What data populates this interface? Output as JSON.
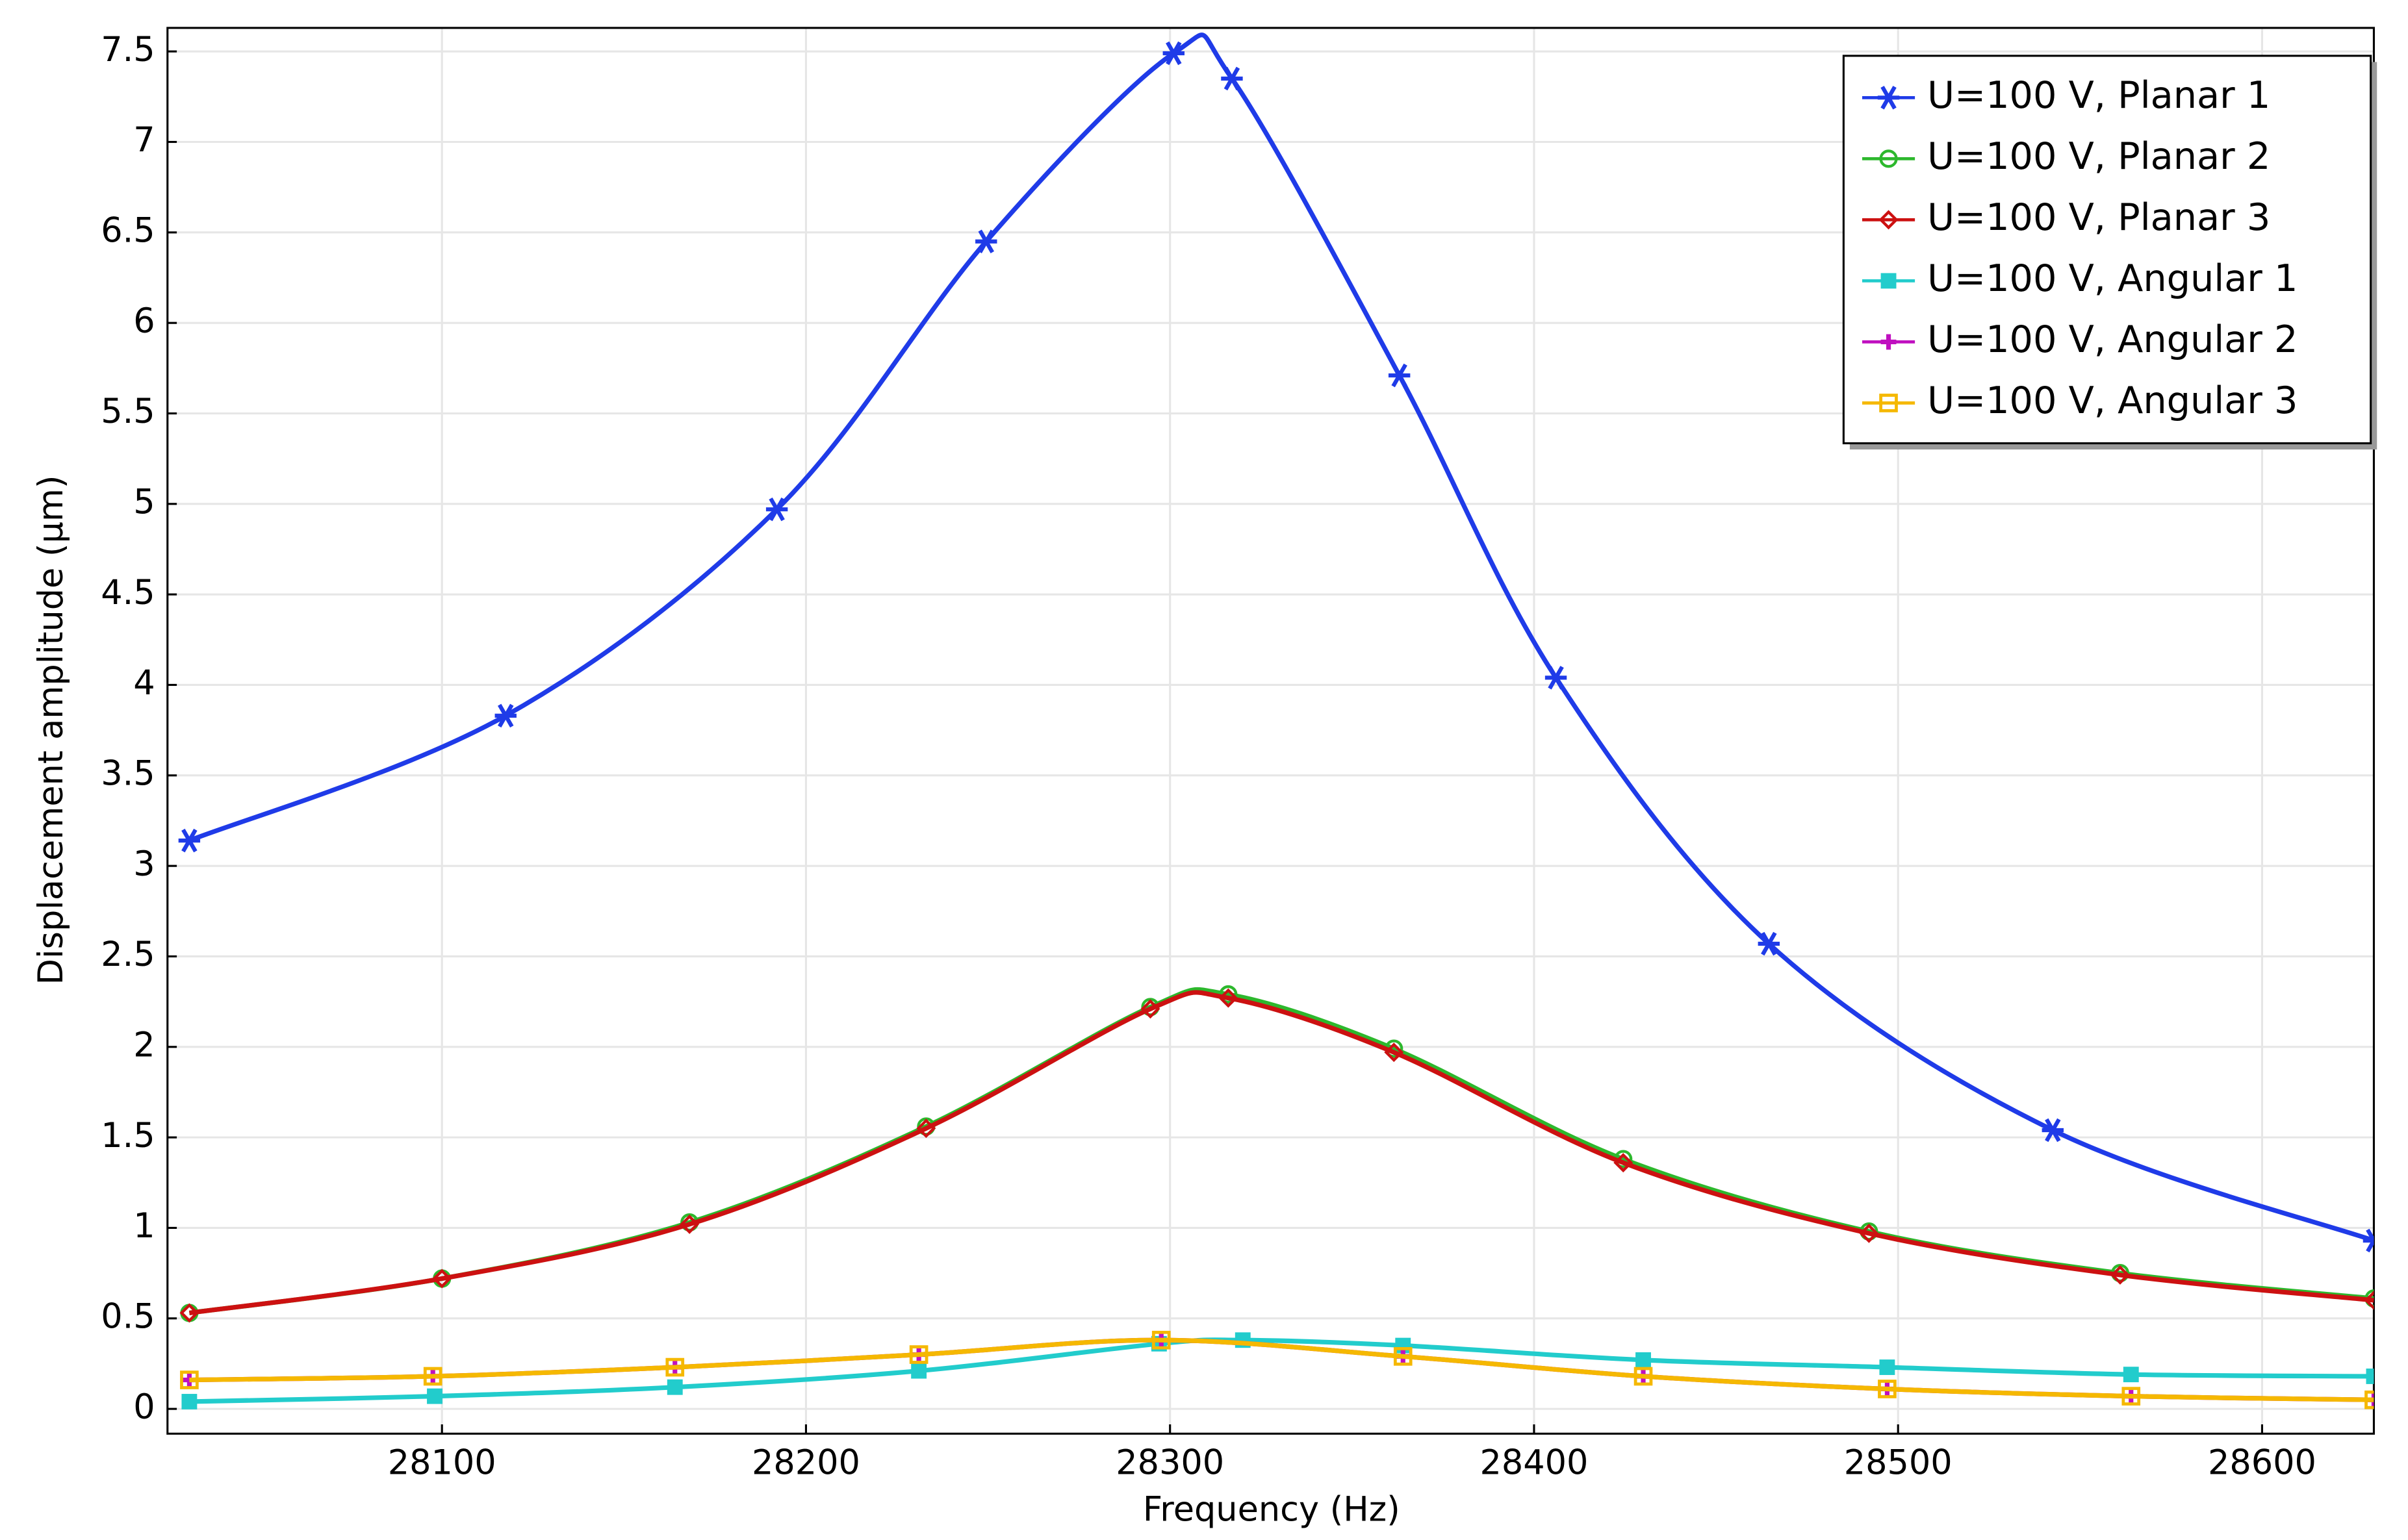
{
  "chart_data": {
    "type": "line",
    "x_label": "Frequency (Hz)",
    "y_label": "Displacement amplitude (µm)",
    "xlim": [
      28024.6,
      28630.7
    ],
    "ylim": [
      -0.137,
      7.63
    ],
    "xticks": [
      28100,
      28200,
      28300,
      28400,
      28500,
      28600
    ],
    "yticks": [
      0,
      0.5,
      1,
      1.5,
      2,
      2.5,
      3,
      3.5,
      4,
      4.5,
      5,
      5.5,
      6,
      6.5,
      7,
      7.5
    ],
    "grid": true,
    "legend": "upper right",
    "series": [
      {
        "name": "U=100 V, Planar 1",
        "color": "#1f3be8",
        "marker": "asterisk",
        "x": [
          28030.6,
          28117.5,
          28192,
          28249.5,
          28301,
          28317,
          28363,
          28406,
          28464.5,
          28542.5,
          28630.7
        ],
        "values": [
          3.14,
          3.83,
          4.97,
          6.45,
          7.49,
          7.35,
          5.71,
          4.04,
          2.57,
          1.54,
          0.93
        ]
      },
      {
        "name": "U=100 V, Planar 2",
        "color": "#2db82d",
        "marker": "circle",
        "x": [
          28030.6,
          28100,
          28168,
          28233,
          28294.6,
          28316,
          28361.5,
          28424.5,
          28492,
          28561,
          28630.7
        ],
        "values": [
          0.53,
          0.72,
          1.03,
          1.56,
          2.22,
          2.29,
          1.99,
          1.38,
          0.98,
          0.75,
          0.61
        ]
      },
      {
        "name": "U=100 V, Planar 3",
        "color": "#cc1111",
        "marker": "diamond",
        "x": [
          28030.6,
          28100,
          28168,
          28233,
          28294.6,
          28316,
          28361.5,
          28424.5,
          28492,
          28561,
          28630.7
        ],
        "values": [
          0.53,
          0.72,
          1.02,
          1.55,
          2.21,
          2.27,
          1.97,
          1.36,
          0.97,
          0.74,
          0.6
        ]
      },
      {
        "name": "U=100 V, Angular 1",
        "color": "#22cccc",
        "marker": "square",
        "x": [
          28030.6,
          28098,
          28164,
          28231,
          28297,
          28320,
          28364,
          28430,
          28497,
          28564,
          28630.7
        ],
        "values": [
          0.04,
          0.07,
          0.12,
          0.21,
          0.36,
          0.38,
          0.35,
          0.27,
          0.23,
          0.19,
          0.18
        ]
      },
      {
        "name": "U=100 V, Angular 2",
        "color": "#c010c0",
        "marker": "plus",
        "x": [
          28030.6,
          28097.5,
          28164,
          28231,
          28297.6,
          28364,
          28430,
          28497,
          28564,
          28630.7
        ],
        "values": [
          0.16,
          0.18,
          0.23,
          0.3,
          0.38,
          0.29,
          0.18,
          0.11,
          0.07,
          0.05
        ]
      },
      {
        "name": "U=100 V, Angular 3",
        "color": "#f5b800",
        "marker": "open-square",
        "x": [
          28030.6,
          28097.5,
          28164,
          28231,
          28297.6,
          28364,
          28430,
          28497,
          28564,
          28630.7
        ],
        "values": [
          0.16,
          0.18,
          0.23,
          0.3,
          0.38,
          0.29,
          0.18,
          0.11,
          0.07,
          0.05
        ]
      }
    ]
  }
}
